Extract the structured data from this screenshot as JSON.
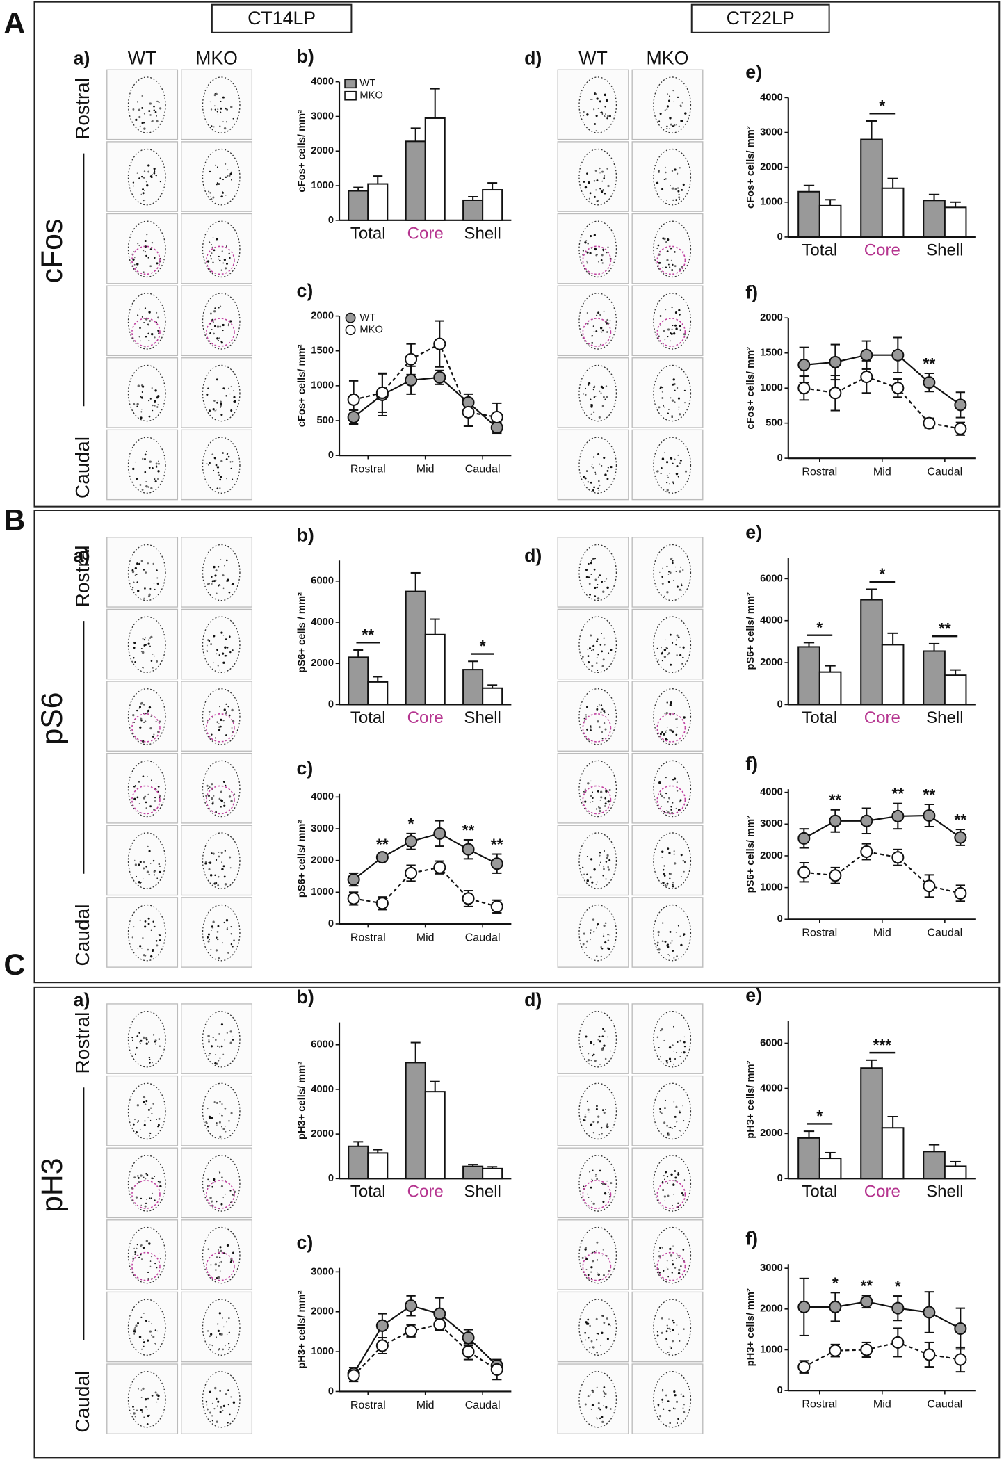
{
  "columns": [
    "CT14LP",
    "CT22LP"
  ],
  "genotypes": [
    "WT",
    "MKO"
  ],
  "panels": [
    {
      "letter": "A",
      "marker": "cFos",
      "rostral": "Rostral",
      "caudal": "Caudal",
      "image_panels": [
        "a)",
        "d)"
      ]
    },
    {
      "letter": "B",
      "marker": "pS6",
      "rostral": "Rostral",
      "caudal": "Caudal",
      "image_panels": [
        "a)",
        "d)"
      ]
    },
    {
      "letter": "C",
      "marker": "pH3",
      "rostral": "Rostral",
      "caudal": "Caudal",
      "image_panels": [
        "a)",
        "d)"
      ]
    }
  ],
  "chart_data": [
    {
      "type": "bar",
      "title": "b)",
      "ylabel": "cFos+ cells/ mm²",
      "categories": [
        "Total",
        "Core",
        "Shell"
      ],
      "category_colors": [
        "#111111",
        "#b5348f",
        "#111111"
      ],
      "series": [
        {
          "name": "WT",
          "color": "#999999",
          "values": [
            850,
            2280,
            580
          ],
          "errors": [
            100,
            380,
            100
          ]
        },
        {
          "name": "MKO",
          "color": "#ffffff",
          "values": [
            1050,
            2950,
            880
          ],
          "errors": [
            230,
            850,
            200
          ]
        }
      ],
      "ylim": [
        0,
        4000
      ],
      "yticks": [
        0,
        1000,
        2000,
        3000,
        4000
      ],
      "legend": "upper left"
    },
    {
      "type": "line",
      "title": "c)",
      "ylabel": "cFos+ cells/ mm²",
      "x": [
        1,
        2,
        3,
        4,
        5,
        6
      ],
      "xlim": [
        0.5,
        6.5
      ],
      "xticks": [
        {
          "value": 1.5,
          "label": "Rostral"
        },
        {
          "value": 3.5,
          "label": "Mid"
        },
        {
          "value": 5.5,
          "label": "Caudal"
        }
      ],
      "series": [
        {
          "name": "WT",
          "color": "#999999",
          "line_style": "solid",
          "values": [
            550,
            870,
            1080,
            1120,
            760,
            400
          ],
          "errors": [
            100,
            300,
            200,
            100,
            120,
            80
          ]
        },
        {
          "name": "MKO",
          "color": "#ffffff",
          "line_style": "dashed",
          "values": [
            800,
            900,
            1380,
            1600,
            620,
            550
          ],
          "errors": [
            270,
            280,
            220,
            330,
            200,
            200
          ]
        }
      ],
      "ylim": [
        0,
        2000
      ],
      "yticks": [
        0,
        500,
        1000,
        1500,
        2000
      ],
      "legend": "upper left"
    },
    {
      "type": "bar",
      "title": "e)",
      "ylabel": "cFos+ cells/ mm²",
      "categories": [
        "Total",
        "Core",
        "Shell"
      ],
      "category_colors": [
        "#111111",
        "#b5348f",
        "#111111"
      ],
      "series": [
        {
          "color": "#999999",
          "values": [
            1300,
            2800,
            1050
          ],
          "errors": [
            180,
            530,
            170
          ]
        },
        {
          "color": "#ffffff",
          "values": [
            900,
            1400,
            850
          ],
          "errors": [
            170,
            280,
            150
          ]
        }
      ],
      "ylim": [
        0,
        4000
      ],
      "yticks": [
        0,
        1000,
        2000,
        3000,
        4000
      ],
      "significance": [
        null,
        "*",
        null
      ]
    },
    {
      "type": "line",
      "title": "f)",
      "ylabel": "cFos+ cells/ mm²",
      "x": [
        1,
        2,
        3,
        4,
        5,
        6
      ],
      "xlim": [
        0.5,
        6.5
      ],
      "xticks": [
        {
          "value": 1.5,
          "label": "Rostral"
        },
        {
          "value": 3.5,
          "label": "Mid"
        },
        {
          "value": 5.5,
          "label": "Caudal"
        }
      ],
      "series": [
        {
          "color": "#999999",
          "line_style": "solid",
          "values": [
            1330,
            1370,
            1470,
            1470,
            1080,
            760
          ],
          "errors": [
            250,
            250,
            200,
            250,
            130,
            180
          ]
        },
        {
          "color": "#ffffff",
          "line_style": "dashed",
          "values": [
            1000,
            930,
            1160,
            1000,
            500,
            420
          ],
          "errors": [
            170,
            250,
            230,
            130,
            70,
            90
          ]
        }
      ],
      "ylim": [
        0,
        2000
      ],
      "yticks": [
        0,
        500,
        1000,
        1500,
        2000
      ],
      "significance": [
        null,
        null,
        null,
        null,
        "**",
        null
      ]
    },
    {
      "type": "bar",
      "title": "b)",
      "ylabel": "pS6+ cells / mm²",
      "categories": [
        "Total",
        "Core",
        "Shell"
      ],
      "category_colors": [
        "#111111",
        "#b5348f",
        "#111111"
      ],
      "series": [
        {
          "color": "#999999",
          "values": [
            2300,
            5500,
            1700
          ],
          "errors": [
            350,
            900,
            400
          ]
        },
        {
          "color": "#ffffff",
          "values": [
            1100,
            3400,
            800
          ],
          "errors": [
            250,
            750,
            150
          ]
        }
      ],
      "ylim": [
        0,
        7000
      ],
      "yticks": [
        0,
        2000,
        4000,
        6000
      ],
      "significance": [
        "**",
        null,
        "*"
      ]
    },
    {
      "type": "line",
      "title": "c)",
      "ylabel": "pS6+ cells/ mm²",
      "x": [
        1,
        2,
        3,
        4,
        5,
        6
      ],
      "xlim": [
        0.5,
        6.5
      ],
      "xticks": [
        {
          "value": 1.5,
          "label": "Rostral"
        },
        {
          "value": 3.5,
          "label": "Mid"
        },
        {
          "value": 5.5,
          "label": "Caudal"
        }
      ],
      "series": [
        {
          "color": "#999999",
          "line_style": "solid",
          "values": [
            1400,
            2100,
            2600,
            2850,
            2350,
            1900
          ],
          "errors": [
            200,
            100,
            250,
            400,
            300,
            300
          ]
        },
        {
          "color": "#ffffff",
          "line_style": "dashed",
          "values": [
            800,
            650,
            1600,
            1780,
            800,
            550
          ],
          "errors": [
            200,
            200,
            250,
            200,
            250,
            200
          ]
        }
      ],
      "ylim": [
        0,
        4100
      ],
      "yticks": [
        0,
        1000,
        2000,
        3000,
        4000
      ],
      "significance": [
        null,
        "**",
        "*",
        null,
        "**",
        "**"
      ]
    },
    {
      "type": "bar",
      "title": "e)",
      "ylabel": "pS6+ cells/ mm²",
      "categories": [
        "Total",
        "Core",
        "Shell"
      ],
      "category_colors": [
        "#111111",
        "#b5348f",
        "#111111"
      ],
      "series": [
        {
          "color": "#999999",
          "values": [
            2750,
            5000,
            2550
          ],
          "errors": [
            200,
            500,
            350
          ]
        },
        {
          "color": "#ffffff",
          "values": [
            1550,
            2850,
            1400
          ],
          "errors": [
            300,
            550,
            250
          ]
        }
      ],
      "ylim": [
        0,
        7000
      ],
      "yticks": [
        0,
        2000,
        4000,
        6000
      ],
      "significance": [
        "*",
        "*",
        "**"
      ]
    },
    {
      "type": "line",
      "title": "f)",
      "ylabel": "pS6+ cells/ mm²",
      "x": [
        1,
        2,
        3,
        4,
        5,
        6
      ],
      "xlim": [
        0.5,
        6.5
      ],
      "xticks": [
        {
          "value": 1.5,
          "label": "Rostral"
        },
        {
          "value": 3.5,
          "label": "Mid"
        },
        {
          "value": 5.5,
          "label": "Caudal"
        }
      ],
      "series": [
        {
          "color": "#999999",
          "line_style": "solid",
          "values": [
            2550,
            3100,
            3100,
            3250,
            3270,
            2580
          ],
          "errors": [
            300,
            350,
            400,
            400,
            350,
            250
          ]
        },
        {
          "color": "#ffffff",
          "line_style": "dashed",
          "values": [
            1480,
            1380,
            2130,
            1950,
            1050,
            820
          ],
          "errors": [
            300,
            250,
            250,
            250,
            350,
            250
          ]
        }
      ],
      "ylim": [
        0,
        4100
      ],
      "yticks": [
        0,
        1000,
        2000,
        3000,
        4000
      ],
      "significance": [
        null,
        "**",
        null,
        "**",
        "**",
        "**"
      ]
    },
    {
      "type": "bar",
      "title": "b)",
      "ylabel": "pH3+ cells/ mm²",
      "categories": [
        "Total",
        "Core",
        "Shell"
      ],
      "category_colors": [
        "#111111",
        "#b5348f",
        "#111111"
      ],
      "series": [
        {
          "color": "#999999",
          "values": [
            1450,
            5200,
            550
          ],
          "errors": [
            200,
            900,
            80
          ]
        },
        {
          "color": "#ffffff",
          "values": [
            1150,
            3900,
            450
          ],
          "errors": [
            150,
            450,
            80
          ]
        }
      ],
      "ylim": [
        0,
        7000
      ],
      "yticks": [
        0,
        2000,
        4000,
        6000
      ]
    },
    {
      "type": "line",
      "title": "c)",
      "ylabel": "pH3+ cells/ mm²",
      "x": [
        1,
        2,
        3,
        4,
        5,
        6
      ],
      "xlim": [
        0.5,
        6.5
      ],
      "xticks": [
        {
          "value": 1.5,
          "label": "Rostral"
        },
        {
          "value": 3.5,
          "label": "Mid"
        },
        {
          "value": 5.5,
          "label": "Caudal"
        }
      ],
      "series": [
        {
          "color": "#999999",
          "line_style": "solid",
          "values": [
            450,
            1650,
            2150,
            1950,
            1350,
            650
          ],
          "errors": [
            150,
            300,
            250,
            400,
            200,
            100
          ]
        },
        {
          "color": "#ffffff",
          "line_style": "dashed",
          "values": [
            400,
            1150,
            1520,
            1680,
            1000,
            550
          ],
          "errors": [
            150,
            200,
            150,
            150,
            200,
            250
          ]
        }
      ],
      "ylim": [
        0,
        3100
      ],
      "yticks": [
        0,
        1000,
        2000,
        3000
      ]
    },
    {
      "type": "bar",
      "title": "e)",
      "ylabel": "pH3+ cells/ mm²",
      "categories": [
        "Total",
        "Core",
        "Shell"
      ],
      "category_colors": [
        "#111111",
        "#b5348f",
        "#111111"
      ],
      "series": [
        {
          "color": "#999999",
          "values": [
            1800,
            4900,
            1200
          ],
          "errors": [
            300,
            350,
            300
          ]
        },
        {
          "color": "#ffffff",
          "values": [
            900,
            2250,
            550
          ],
          "errors": [
            250,
            500,
            200
          ]
        }
      ],
      "ylim": [
        0,
        7000
      ],
      "yticks": [
        0,
        2000,
        4000,
        6000
      ],
      "significance": [
        "*",
        "***",
        null
      ]
    },
    {
      "type": "line",
      "title": "f)",
      "ylabel": "pH3+ cells/ mm²",
      "x": [
        1,
        2,
        3,
        4,
        5,
        6
      ],
      "xlim": [
        0.5,
        6.5
      ],
      "xticks": [
        {
          "value": 1.5,
          "label": "Rostral"
        },
        {
          "value": 3.5,
          "label": "Mid"
        },
        {
          "value": 5.5,
          "label": "Caudal"
        }
      ],
      "series": [
        {
          "color": "#999999",
          "line_style": "solid",
          "values": [
            2050,
            2050,
            2180,
            2020,
            1920,
            1520
          ],
          "errors": [
            700,
            350,
            150,
            300,
            500,
            500
          ]
        },
        {
          "color": "#ffffff",
          "line_style": "dashed",
          "values": [
            580,
            980,
            1000,
            1180,
            880,
            760
          ],
          "errors": [
            150,
            150,
            180,
            350,
            300,
            300
          ]
        }
      ],
      "ylim": [
        0,
        3100
      ],
      "yticks": [
        0,
        1000,
        2000,
        3000
      ],
      "significance": [
        null,
        "*",
        "**",
        "*",
        null,
        null
      ]
    }
  ]
}
